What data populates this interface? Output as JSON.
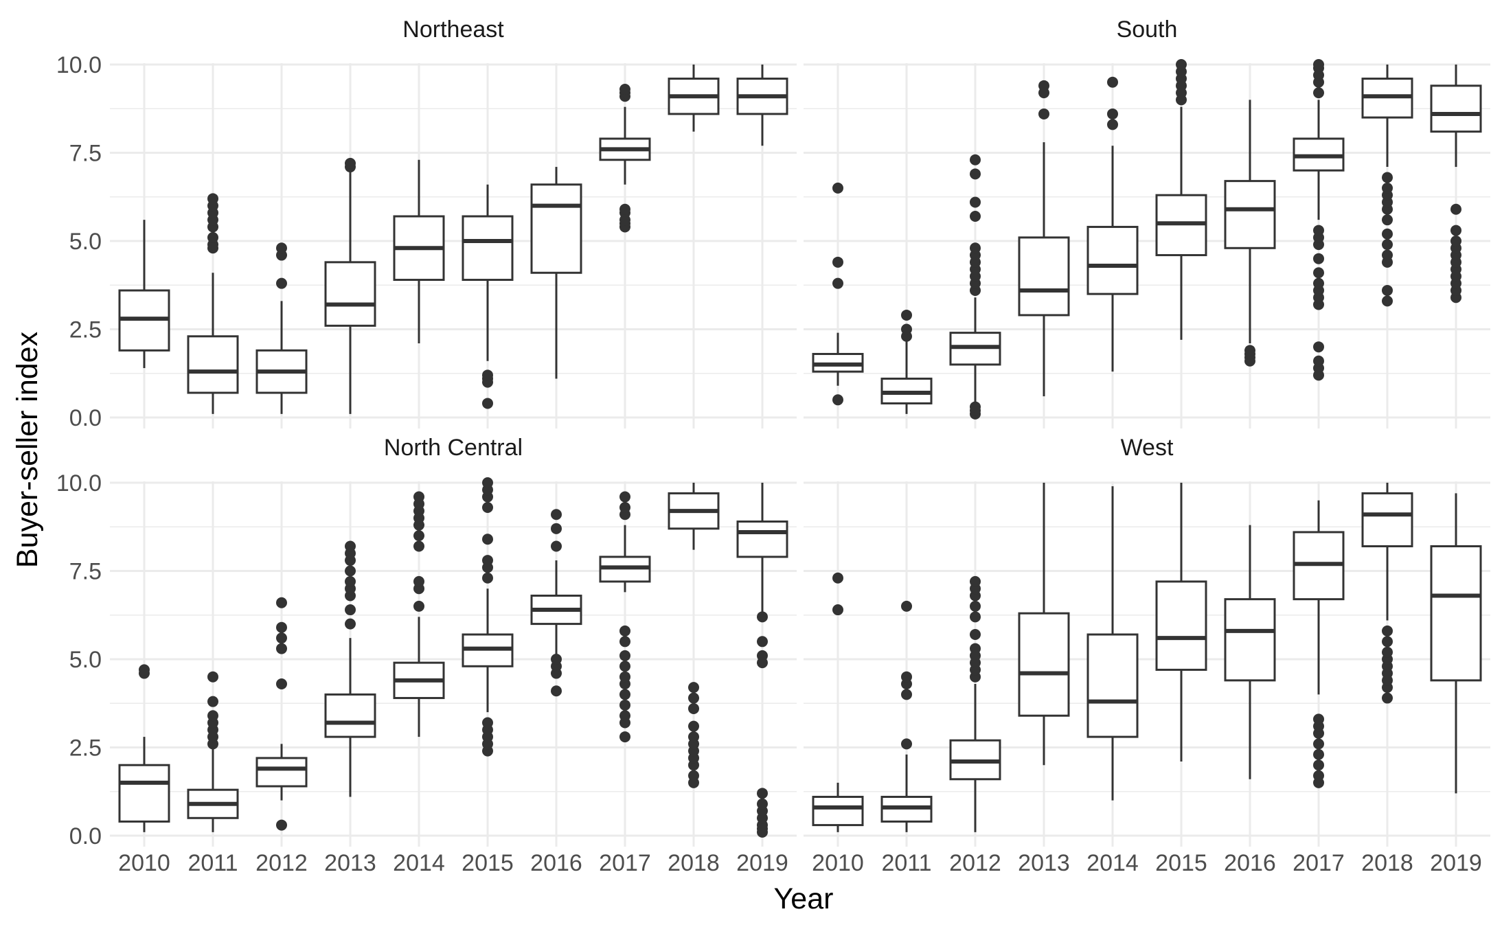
{
  "chart_data": {
    "type": "boxplot",
    "xlabel": "Year",
    "ylabel": "Buyer-seller index",
    "ylim": [
      0,
      10
    ],
    "y_ticks": [
      "0.0",
      "2.5",
      "5.0",
      "7.5",
      "10.0"
    ],
    "categories": [
      "2010",
      "2011",
      "2012",
      "2013",
      "2014",
      "2015",
      "2016",
      "2017",
      "2018",
      "2019"
    ],
    "grid": "on",
    "legend": "none",
    "facets": [
      {
        "title": "Northeast",
        "boxes": [
          {
            "year": "2010",
            "min": 1.4,
            "q1": 1.9,
            "median": 2.8,
            "q3": 3.6,
            "max": 5.6,
            "outliers": []
          },
          {
            "year": "2011",
            "min": 0.1,
            "q1": 0.7,
            "median": 1.3,
            "q3": 2.3,
            "max": 4.1,
            "outliers": [
              4.8,
              4.9,
              5.1,
              5.4,
              5.6,
              5.8,
              6.0,
              6.2
            ]
          },
          {
            "year": "2012",
            "min": 0.1,
            "q1": 0.7,
            "median": 1.3,
            "q3": 1.9,
            "max": 3.3,
            "outliers": [
              3.8,
              4.6,
              4.8
            ]
          },
          {
            "year": "2013",
            "min": 0.1,
            "q1": 2.6,
            "median": 3.2,
            "q3": 4.4,
            "max": 7.0,
            "outliers": [
              7.1,
              7.2
            ]
          },
          {
            "year": "2014",
            "min": 2.1,
            "q1": 3.9,
            "median": 4.8,
            "q3": 5.7,
            "max": 7.3,
            "outliers": []
          },
          {
            "year": "2015",
            "min": 1.6,
            "q1": 3.9,
            "median": 5.0,
            "q3": 5.7,
            "max": 6.6,
            "outliers": [
              0.4,
              1.0,
              1.1,
              1.2
            ]
          },
          {
            "year": "2016",
            "min": 1.1,
            "q1": 4.1,
            "median": 6.0,
            "q3": 6.6,
            "max": 7.1,
            "outliers": []
          },
          {
            "year": "2017",
            "min": 6.6,
            "q1": 7.3,
            "median": 7.6,
            "q3": 7.9,
            "max": 8.8,
            "outliers": [
              5.4,
              5.5,
              5.6,
              5.8,
              5.9,
              9.1,
              9.2,
              9.3
            ]
          },
          {
            "year": "2018",
            "min": 8.1,
            "q1": 8.6,
            "median": 9.1,
            "q3": 9.6,
            "max": 10.0,
            "outliers": []
          },
          {
            "year": "2019",
            "min": 7.7,
            "q1": 8.6,
            "median": 9.1,
            "q3": 9.6,
            "max": 10.0,
            "outliers": []
          }
        ]
      },
      {
        "title": "South",
        "boxes": [
          {
            "year": "2010",
            "min": 0.9,
            "q1": 1.3,
            "median": 1.5,
            "q3": 1.8,
            "max": 2.4,
            "outliers": [
              0.5,
              3.8,
              4.4,
              6.5
            ]
          },
          {
            "year": "2011",
            "min": 0.1,
            "q1": 0.4,
            "median": 0.7,
            "q3": 1.1,
            "max": 2.2,
            "outliers": [
              2.3,
              2.5,
              2.9
            ]
          },
          {
            "year": "2012",
            "min": 0.4,
            "q1": 1.5,
            "median": 2.0,
            "q3": 2.4,
            "max": 3.4,
            "outliers": [
              0.1,
              0.2,
              0.3,
              3.6,
              3.8,
              4.0,
              4.2,
              4.4,
              4.6,
              4.8,
              5.7,
              6.1,
              6.9,
              7.3
            ]
          },
          {
            "year": "2013",
            "min": 0.6,
            "q1": 2.9,
            "median": 3.6,
            "q3": 5.1,
            "max": 7.8,
            "outliers": [
              8.6,
              9.2,
              9.4
            ]
          },
          {
            "year": "2014",
            "min": 1.3,
            "q1": 3.5,
            "median": 4.3,
            "q3": 5.4,
            "max": 7.7,
            "outliers": [
              8.3,
              8.6,
              9.5
            ]
          },
          {
            "year": "2015",
            "min": 2.2,
            "q1": 4.6,
            "median": 5.5,
            "q3": 6.3,
            "max": 8.8,
            "outliers": [
              9.0,
              9.2,
              9.4,
              9.6,
              9.8,
              10.0
            ]
          },
          {
            "year": "2016",
            "min": 2.1,
            "q1": 4.8,
            "median": 5.9,
            "q3": 6.7,
            "max": 9.0,
            "outliers": [
              1.6,
              1.7,
              1.8,
              1.9
            ]
          },
          {
            "year": "2017",
            "min": 5.6,
            "q1": 7.0,
            "median": 7.4,
            "q3": 7.9,
            "max": 9.0,
            "outliers": [
              1.2,
              1.4,
              1.6,
              2.0,
              3.2,
              3.4,
              3.6,
              3.8,
              4.1,
              4.5,
              4.9,
              5.1,
              5.3,
              9.2,
              9.5,
              9.7,
              9.9,
              10.0
            ]
          },
          {
            "year": "2018",
            "min": 7.1,
            "q1": 8.5,
            "median": 9.1,
            "q3": 9.6,
            "max": 10.0,
            "outliers": [
              3.3,
              3.6,
              4.4,
              4.6,
              4.9,
              5.2,
              5.6,
              5.9,
              6.1,
              6.3,
              6.5,
              6.8
            ]
          },
          {
            "year": "2019",
            "min": 7.1,
            "q1": 8.1,
            "median": 8.6,
            "q3": 9.4,
            "max": 10.0,
            "outliers": [
              3.4,
              3.6,
              3.8,
              4.0,
              4.2,
              4.4,
              4.6,
              4.8,
              5.0,
              5.3,
              5.9
            ]
          }
        ]
      },
      {
        "title": "North Central",
        "boxes": [
          {
            "year": "2010",
            "min": 0.1,
            "q1": 0.4,
            "median": 1.5,
            "q3": 2.0,
            "max": 2.8,
            "outliers": [
              4.6,
              4.7
            ]
          },
          {
            "year": "2011",
            "min": 0.1,
            "q1": 0.5,
            "median": 0.9,
            "q3": 1.3,
            "max": 2.5,
            "outliers": [
              2.6,
              2.8,
              3.0,
              3.2,
              3.4,
              3.8,
              4.5
            ]
          },
          {
            "year": "2012",
            "min": 1.0,
            "q1": 1.4,
            "median": 1.9,
            "q3": 2.2,
            "max": 2.6,
            "outliers": [
              0.3,
              4.3,
              5.3,
              5.6,
              5.9,
              6.6
            ]
          },
          {
            "year": "2013",
            "min": 1.1,
            "q1": 2.8,
            "median": 3.2,
            "q3": 4.0,
            "max": 5.6,
            "outliers": [
              6.0,
              6.4,
              6.8,
              7.0,
              7.2,
              7.5,
              7.8,
              8.0,
              8.2
            ]
          },
          {
            "year": "2014",
            "min": 2.8,
            "q1": 3.9,
            "median": 4.4,
            "q3": 4.9,
            "max": 6.2,
            "outliers": [
              6.5,
              7.0,
              7.2,
              8.2,
              8.5,
              8.8,
              9.0,
              9.2,
              9.4,
              9.6
            ]
          },
          {
            "year": "2015",
            "min": 3.5,
            "q1": 4.8,
            "median": 5.3,
            "q3": 5.7,
            "max": 7.0,
            "outliers": [
              2.4,
              2.6,
              2.8,
              3.0,
              3.2,
              7.3,
              7.6,
              7.8,
              8.4,
              9.3,
              9.6,
              9.8,
              10.0
            ]
          },
          {
            "year": "2016",
            "min": 5.0,
            "q1": 6.0,
            "median": 6.4,
            "q3": 6.8,
            "max": 7.8,
            "outliers": [
              4.1,
              4.6,
              4.8,
              5.0,
              8.2,
              8.7,
              9.1
            ]
          },
          {
            "year": "2017",
            "min": 6.9,
            "q1": 7.2,
            "median": 7.6,
            "q3": 7.9,
            "max": 8.8,
            "outliers": [
              2.8,
              3.2,
              3.4,
              3.7,
              4.0,
              4.3,
              4.5,
              4.8,
              5.1,
              5.5,
              5.8,
              9.1,
              9.3,
              9.6
            ]
          },
          {
            "year": "2018",
            "min": 8.1,
            "q1": 8.7,
            "median": 9.2,
            "q3": 9.7,
            "max": 10.0,
            "outliers": [
              1.5,
              1.7,
              2.0,
              2.2,
              2.4,
              2.6,
              2.8,
              3.1,
              3.6,
              3.9,
              4.2
            ]
          },
          {
            "year": "2019",
            "min": 6.3,
            "q1": 7.9,
            "median": 8.6,
            "q3": 8.9,
            "max": 10.0,
            "outliers": [
              0.1,
              0.2,
              0.3,
              0.5,
              0.7,
              0.9,
              1.2,
              4.9,
              5.1,
              5.5,
              6.2
            ]
          }
        ]
      },
      {
        "title": "West",
        "boxes": [
          {
            "year": "2010",
            "min": 0.1,
            "q1": 0.3,
            "median": 0.8,
            "q3": 1.1,
            "max": 1.5,
            "outliers": [
              6.4,
              7.3
            ]
          },
          {
            "year": "2011",
            "min": 0.1,
            "q1": 0.4,
            "median": 0.8,
            "q3": 1.1,
            "max": 2.3,
            "outliers": [
              2.6,
              4.0,
              4.3,
              4.5,
              6.5
            ]
          },
          {
            "year": "2012",
            "min": 0.1,
            "q1": 1.6,
            "median": 2.1,
            "q3": 2.7,
            "max": 4.3,
            "outliers": [
              4.5,
              4.7,
              4.9,
              5.1,
              5.3,
              5.7,
              6.2,
              6.5,
              6.8,
              7.0,
              7.2
            ]
          },
          {
            "year": "2013",
            "min": 2.0,
            "q1": 3.4,
            "median": 4.6,
            "q3": 6.3,
            "max": 10.0,
            "outliers": []
          },
          {
            "year": "2014",
            "min": 1.0,
            "q1": 2.8,
            "median": 3.8,
            "q3": 5.7,
            "max": 9.9,
            "outliers": []
          },
          {
            "year": "2015",
            "min": 2.1,
            "q1": 4.7,
            "median": 5.6,
            "q3": 7.2,
            "max": 10.0,
            "outliers": []
          },
          {
            "year": "2016",
            "min": 1.6,
            "q1": 4.4,
            "median": 5.8,
            "q3": 6.7,
            "max": 8.8,
            "outliers": []
          },
          {
            "year": "2017",
            "min": 4.0,
            "q1": 6.7,
            "median": 7.7,
            "q3": 8.6,
            "max": 9.5,
            "outliers": [
              1.5,
              1.7,
              2.0,
              2.3,
              2.6,
              2.9,
              3.1,
              3.3
            ]
          },
          {
            "year": "2018",
            "min": 6.1,
            "q1": 8.2,
            "median": 9.1,
            "q3": 9.7,
            "max": 10.0,
            "outliers": [
              3.9,
              4.2,
              4.4,
              4.6,
              4.8,
              5.0,
              5.2,
              5.5,
              5.8
            ]
          },
          {
            "year": "2019",
            "min": 1.2,
            "q1": 4.4,
            "median": 6.8,
            "q3": 8.2,
            "max": 9.7,
            "outliers": []
          }
        ]
      }
    ]
  }
}
